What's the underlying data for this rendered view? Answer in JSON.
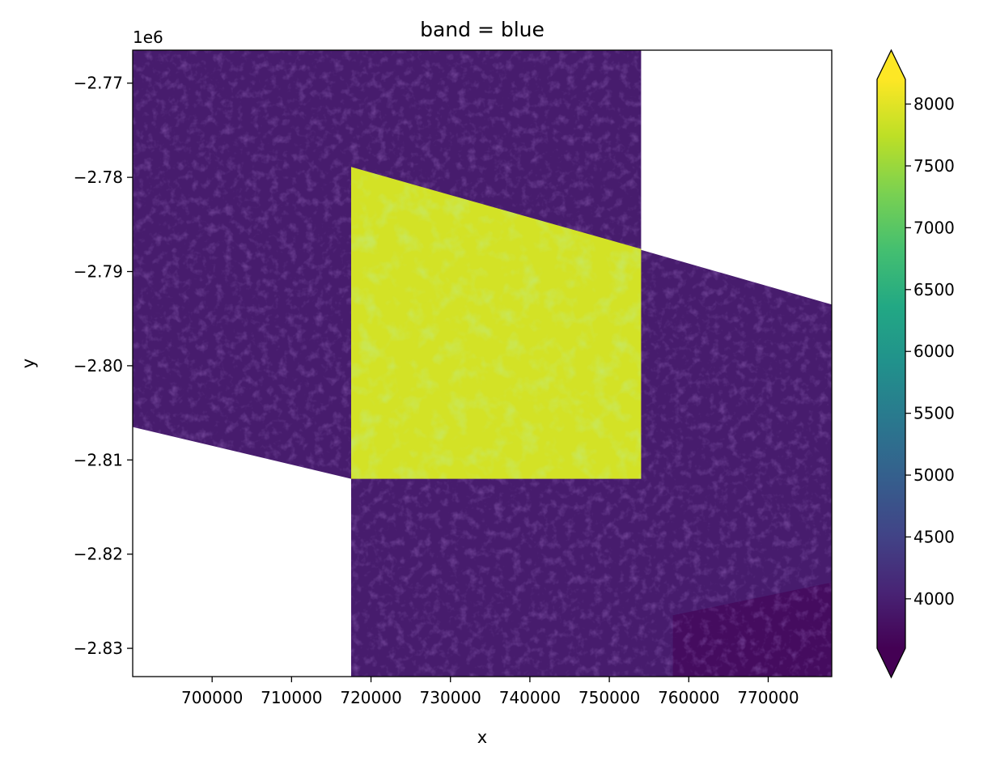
{
  "chart_data": {
    "type": "heatmap",
    "title": "band = blue",
    "xlabel": "x",
    "ylabel": "y",
    "y_offset_label": "1e6",
    "xlim": [
      690000,
      778000
    ],
    "ylim": [
      -2833000,
      -2766500
    ],
    "x_ticks": [
      700000,
      710000,
      720000,
      730000,
      740000,
      750000,
      760000,
      770000
    ],
    "x_tick_labels": [
      "700000",
      "710000",
      "720000",
      "730000",
      "740000",
      "750000",
      "760000",
      "770000"
    ],
    "y_ticks": [
      -2.77,
      -2.78,
      -2.79,
      -2.8,
      -2.81,
      -2.82,
      -2.83
    ],
    "y_tick_labels": [
      "−2.77",
      "−2.78",
      "−2.79",
      "−2.80",
      "−2.81",
      "−2.82",
      "−2.83"
    ],
    "colormap": "viridis",
    "colorbar": {
      "min": 3600,
      "max": 8200,
      "extend": "both",
      "ticks": [
        4000,
        4500,
        5000,
        5500,
        6000,
        6500,
        7000,
        7500,
        8000
      ],
      "tick_labels": [
        "4000",
        "4500",
        "5000",
        "5500",
        "6000",
        "6500",
        "7000",
        "7500",
        "8000"
      ]
    },
    "regions": [
      {
        "name": "west-tile",
        "value_approx": 3950,
        "polygon": [
          [
            690000,
            -2766500
          ],
          [
            754000,
            -2766500
          ],
          [
            754000,
            -2787700
          ],
          [
            778000,
            -2793500
          ],
          [
            778000,
            -2833000
          ],
          [
            717500,
            -2833000
          ],
          [
            717500,
            -2812000
          ],
          [
            690000,
            -2806500
          ]
        ]
      },
      {
        "name": "bright-tile",
        "value_approx": 7900,
        "polygon": [
          [
            717500,
            -2778900
          ],
          [
            754000,
            -2787600
          ],
          [
            754000,
            -2812000
          ],
          [
            717500,
            -2812000
          ]
        ]
      },
      {
        "name": "dark-corner",
        "value_approx": 3750,
        "polygon": [
          [
            758000,
            -2826500
          ],
          [
            778000,
            -2823000
          ],
          [
            778000,
            -2833000
          ],
          [
            758000,
            -2833000
          ]
        ]
      }
    ]
  }
}
